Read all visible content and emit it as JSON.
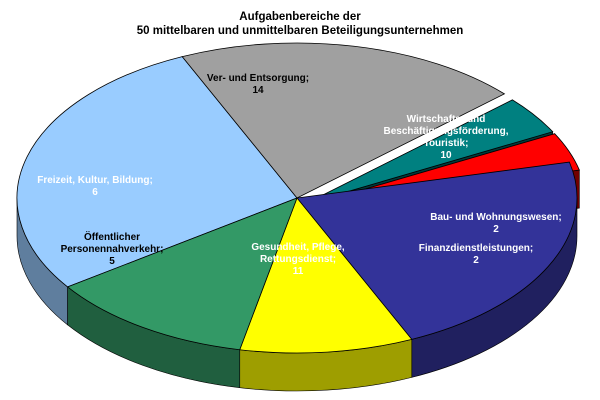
{
  "chart_data": {
    "type": "pie",
    "style": "3d-exploded-pie",
    "title_lines": [
      "Aufgabenbereiche der",
      "50 mittelbaren und unmittelbaren Beteiligungsunternehmen"
    ],
    "total": 50,
    "slices": [
      {
        "name_lines": [
          "Ver- und Entsorgung;"
        ],
        "value": 14,
        "color": "#99CCFF",
        "text_color": "#000000"
      },
      {
        "name_lines": [
          "Wirtschafts- und",
          "Beschäftigungsförderung,",
          "Touristik;"
        ],
        "value": 10,
        "color": "#A0A0A0",
        "text_color": "#FFFFFF"
      },
      {
        "name_lines": [
          "Bau- und Wohnungswesen;"
        ],
        "value": 2,
        "color": "#008080",
        "text_color": "#FFFFFF"
      },
      {
        "name_lines": [
          "Finanzdienstleistungen;"
        ],
        "value": 2,
        "color": "#FF0000",
        "text_color": "#FFFFFF"
      },
      {
        "name_lines": [
          "Gesundheit, Pflege,",
          "Rettungsdienst;"
        ],
        "value": 11,
        "color": "#333399",
        "text_color": "#FFFFFF"
      },
      {
        "name_lines": [
          "Öffentlicher",
          "Personennahverkehr;"
        ],
        "value": 5,
        "color": "#FFFF00",
        "text_color": "#000000"
      },
      {
        "name_lines": [
          "Freizeit, Kultur, Bildung;"
        ],
        "value": 6,
        "color": "#339966",
        "text_color": "#FFFFFF"
      }
    ]
  }
}
